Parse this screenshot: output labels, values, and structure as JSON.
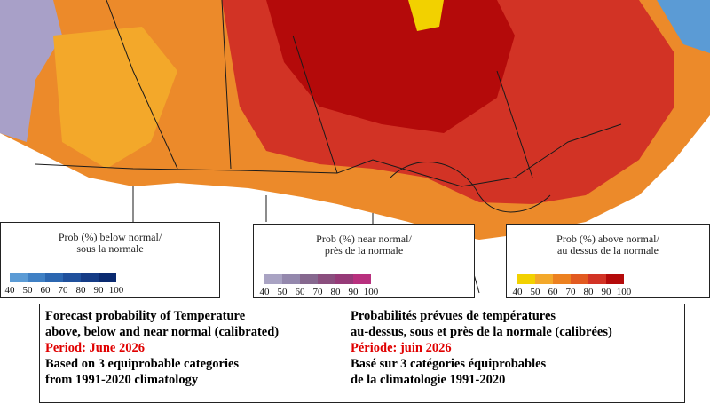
{
  "legends": [
    {
      "title_lines": [
        "Prob (%) below normal/",
        "sous la normale"
      ],
      "ticks": [
        40,
        50,
        60,
        70,
        80,
        90,
        100
      ],
      "colors": [
        "#5b9bd5",
        "#3f80c4",
        "#2b66b0",
        "#1f509c",
        "#153c86",
        "#0a2a70"
      ]
    },
    {
      "title_lines": [
        "Prob (%) near normal/",
        "près de la normale"
      ],
      "ticks": [
        40,
        50,
        60,
        70,
        80,
        90,
        100
      ],
      "colors": [
        "#a9a3c3",
        "#9488ad",
        "#86688f",
        "#8a4e7e",
        "#963a78",
        "#b8307e"
      ]
    },
    {
      "title_lines": [
        "Prob (%) above normal/",
        "au dessus de la normale"
      ],
      "ticks": [
        40,
        50,
        60,
        70,
        80,
        90,
        100
      ],
      "colors": [
        "#f2d100",
        "#f3a82a",
        "#ec8120",
        "#e25a20",
        "#d23325",
        "#b40a0a"
      ]
    }
  ],
  "info": {
    "english": [
      "Forecast probability of Temperature",
      "above, below and near normal (calibrated)",
      "Period: June 2026",
      "Based on 3 equiprobable categories",
      " from 1991-2020 climatology"
    ],
    "french": [
      "Probabilités prévues de températures",
      "au-dessus, sous et près de la normale (calibrées)",
      "Période: juin 2026",
      "Basé sur 3 catégories équiprobables",
      "de la climatologie 1991-2020"
    ]
  }
}
